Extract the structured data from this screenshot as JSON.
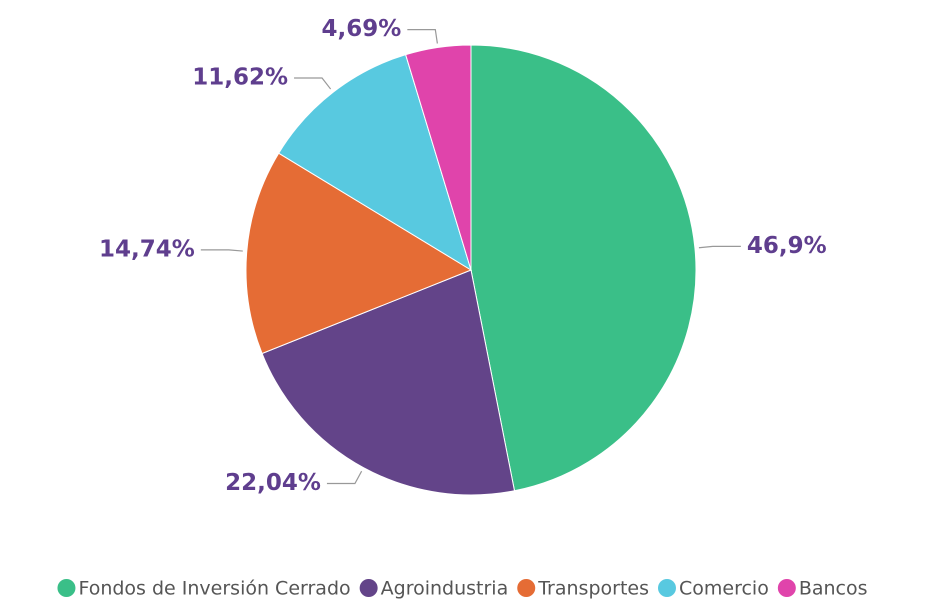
{
  "chart_data": {
    "type": "pie",
    "categories": [
      "Fondos de Inversión Cerrado",
      "Agroindustria",
      "Transportes",
      "Comercio",
      "Bancos"
    ],
    "values": [
      46.9,
      22.04,
      14.74,
      11.62,
      4.69
    ],
    "value_labels": [
      "46,9%",
      "22,04%",
      "14,74%",
      "11,62%",
      "4,69%"
    ],
    "colors": [
      "#3abf88",
      "#634489",
      "#e56c35",
      "#58c9e0",
      "#e044ab"
    ],
    "legend": "bottom"
  }
}
